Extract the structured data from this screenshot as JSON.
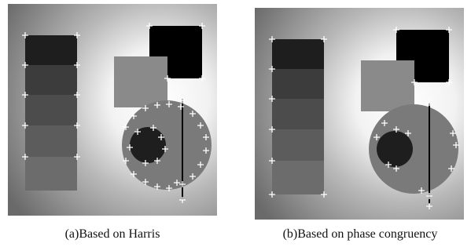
{
  "panels": [
    {
      "caption": "(a)Based on Harris"
    },
    {
      "caption": "(b)Based on phase congruency"
    }
  ]
}
